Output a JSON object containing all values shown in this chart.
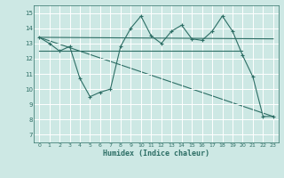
{
  "xlabel": "Humidex (Indice chaleur)",
  "bg_color": "#cde8e4",
  "grid_color": "#b8d8d4",
  "line_color": "#2d6e65",
  "ylim": [
    6.5,
    15.5
  ],
  "xlim": [
    -0.5,
    23.5
  ],
  "yticks": [
    7,
    8,
    9,
    10,
    11,
    12,
    13,
    14,
    15
  ],
  "xticks": [
    0,
    1,
    2,
    3,
    4,
    5,
    6,
    7,
    8,
    9,
    10,
    11,
    12,
    13,
    14,
    15,
    16,
    17,
    18,
    19,
    20,
    21,
    22,
    23
  ],
  "line1_x": [
    0,
    1,
    2,
    3,
    4,
    5,
    6,
    7,
    8,
    9,
    10,
    11,
    12,
    13,
    14,
    15,
    16,
    17,
    18,
    19,
    20,
    21,
    22,
    23
  ],
  "line1_y": [
    13.4,
    13.0,
    12.5,
    12.8,
    10.7,
    9.5,
    9.8,
    10.0,
    12.8,
    14.0,
    14.8,
    13.5,
    13.0,
    13.8,
    14.2,
    13.3,
    13.2,
    13.8,
    14.8,
    13.8,
    12.2,
    10.8,
    8.2,
    8.2
  ],
  "line2_x": [
    0,
    1,
    2,
    3,
    4,
    5,
    6,
    7,
    8,
    9,
    10,
    11,
    12,
    13,
    14,
    15,
    16,
    17,
    18,
    19,
    20
  ],
  "line2_y": [
    12.5,
    12.5,
    12.5,
    12.5,
    12.5,
    12.5,
    12.5,
    12.5,
    12.5,
    12.5,
    12.5,
    12.5,
    12.5,
    12.5,
    12.5,
    12.5,
    12.5,
    12.5,
    12.5,
    12.5,
    12.5
  ],
  "line3_x": [
    0,
    23
  ],
  "line3_y": [
    13.4,
    13.3
  ],
  "line4_x": [
    0,
    23
  ],
  "line4_y": [
    13.4,
    8.2
  ]
}
